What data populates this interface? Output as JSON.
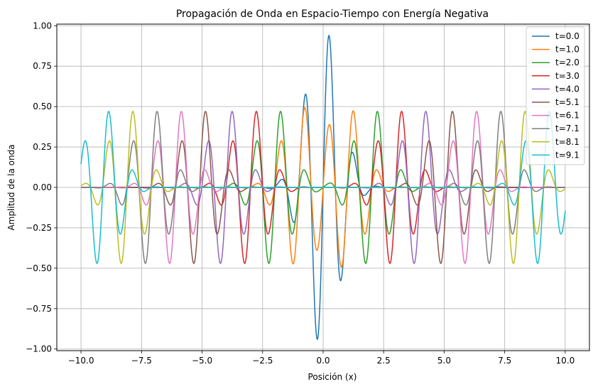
{
  "chart_data": {
    "type": "line",
    "title": "Propagación de Onda en Espacio-Tiempo con Energía Negativa",
    "xlabel": "Posición (x)",
    "ylabel": "Amplitud de la onda",
    "xlim": [
      -11.0,
      11.0
    ],
    "ylim": [
      -1.01,
      1.01
    ],
    "x_ticks": [
      -10.0,
      -7.5,
      -5.0,
      -2.5,
      0.0,
      2.5,
      5.0,
      7.5,
      10.0
    ],
    "x_tick_labels": [
      "−10.0",
      "−7.5",
      "−5.0",
      "−2.5",
      "0.0",
      "2.5",
      "5.0",
      "7.5",
      "10.0"
    ],
    "y_ticks": [
      -1.0,
      -0.75,
      -0.5,
      -0.25,
      0.0,
      0.25,
      0.5,
      0.75,
      1.0
    ],
    "y_tick_labels": [
      "−1.00",
      "−0.75",
      "−0.50",
      "−0.25",
      "0.00",
      "0.25",
      "0.50",
      "0.75",
      "1.00"
    ],
    "grid": true,
    "legend_position": "top-right",
    "x_range": [
      -10.0,
      10.0
    ],
    "series": [
      {
        "name": "t=0.0",
        "t": 0.0,
        "color": "#1f77b4"
      },
      {
        "name": "t=1.0",
        "t": 1.0,
        "color": "#ff7f0e"
      },
      {
        "name": "t=2.0",
        "t": 2.0,
        "color": "#2ca02c"
      },
      {
        "name": "t=3.0",
        "t": 3.0,
        "color": "#d62728"
      },
      {
        "name": "t=4.0",
        "t": 4.0,
        "color": "#9467bd"
      },
      {
        "name": "t=5.1",
        "t": 5.1,
        "color": "#8c564b"
      },
      {
        "name": "t=6.1",
        "t": 6.1,
        "color": "#e377c2"
      },
      {
        "name": "t=7.1",
        "t": 7.1,
        "color": "#7f7f7f"
      },
      {
        "name": "t=8.1",
        "t": 8.1,
        "color": "#bcbd22"
      },
      {
        "name": "t=9.1",
        "t": 9.1,
        "color": "#17becf"
      }
    ]
  }
}
